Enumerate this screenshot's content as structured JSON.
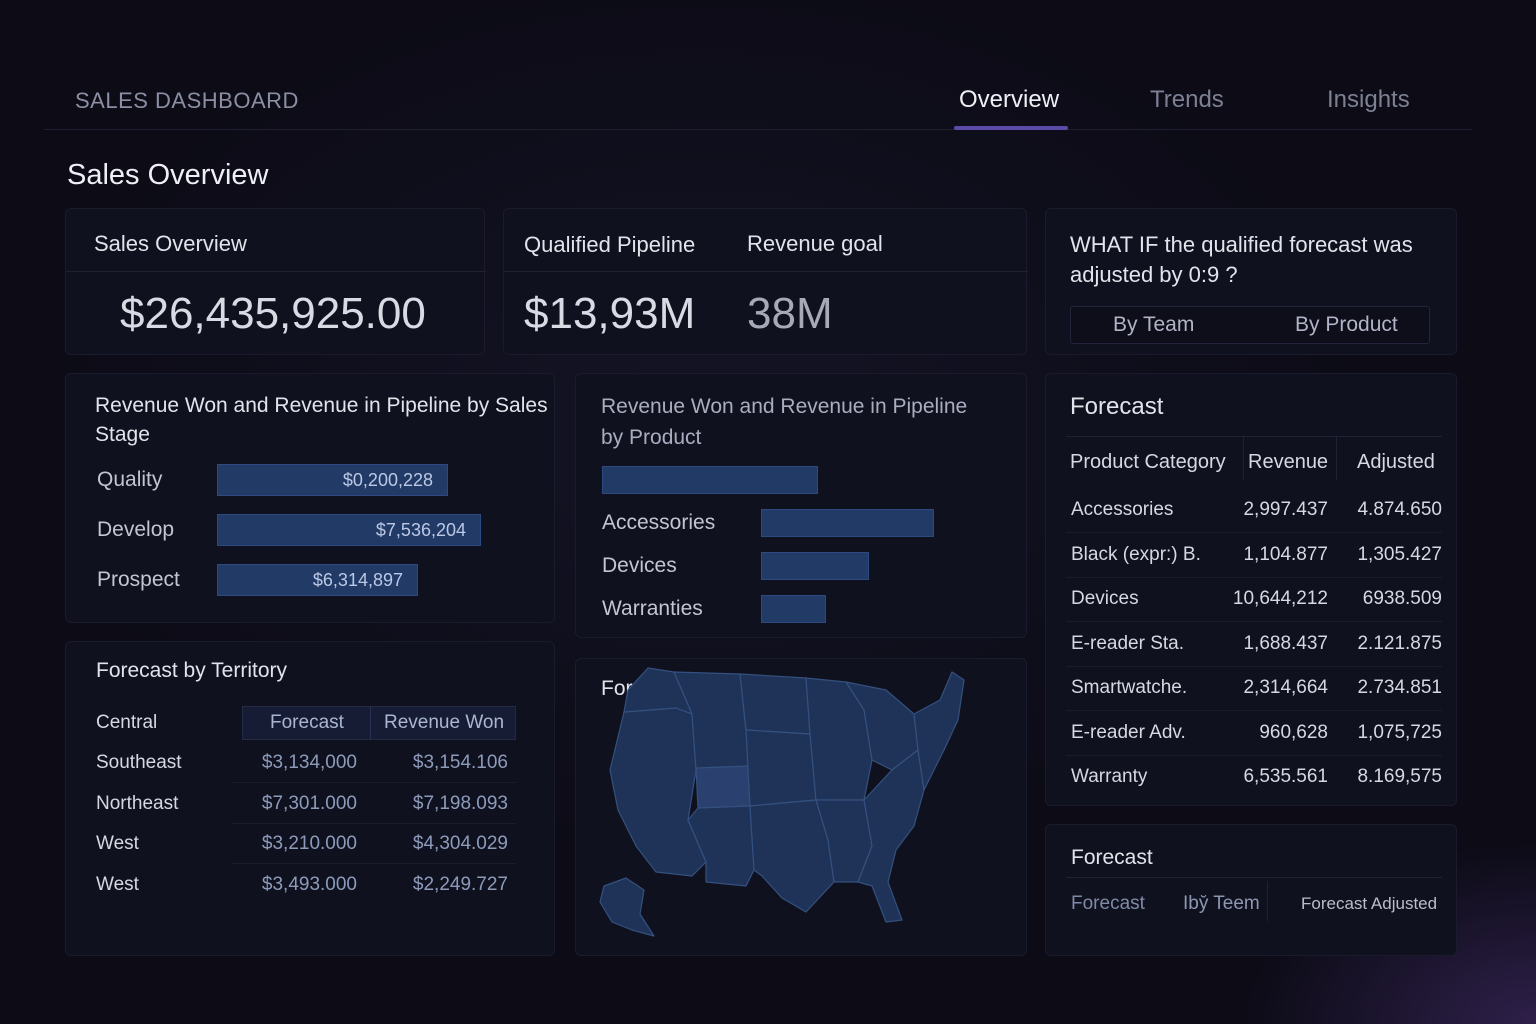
{
  "header": {
    "brand": "SALES DASHBOARD",
    "tabs": [
      {
        "label": "Overview",
        "active": true
      },
      {
        "label": "Trends",
        "active": false
      },
      {
        "label": "Insights",
        "active": false
      }
    ]
  },
  "page_title": "Sales Overview",
  "kpi_sales": {
    "title": "Sales Overview",
    "value": "$26,435,925.00"
  },
  "kpi_pipeline": {
    "pipeline_label": "Qualified Pipeline",
    "goal_label": "Revenue goal",
    "pipeline_value": "$13,93M",
    "goal_value": "38M"
  },
  "whatif": {
    "question": "WHAT IF the qualified forecast was adjusted by 0:9 ?",
    "options": [
      "By Team",
      "By Product"
    ]
  },
  "stage_chart": {
    "title": "Revenue Won and Revenue in Pipeline by Sales Stage",
    "rows": [
      {
        "label": "Quality",
        "value_text": "$0,200,228",
        "fill": 0.76
      },
      {
        "label": "Develop",
        "value_text": "$7,536,204",
        "fill": 0.87
      },
      {
        "label": "Prospect",
        "value_text": "$6,314,897",
        "fill": 0.66
      }
    ]
  },
  "product_chart": {
    "title": "Revenue Won and Revenue in Pipeline by Product",
    "rows": [
      {
        "label": "",
        "fill": 1.0
      },
      {
        "label": "Accessories",
        "fill": 0.8
      },
      {
        "label": "Devices",
        "fill": 0.5
      },
      {
        "label": "Warranties",
        "fill": 0.3
      }
    ]
  },
  "forecast_table": {
    "title": "Forecast",
    "columns": [
      "Product Category",
      "Revenue",
      "Adjusted"
    ],
    "rows": [
      [
        "Accessories",
        "2,997.437",
        "4.874.650"
      ],
      [
        "Black (expr:) B.",
        "1,104.877",
        "1,305.427"
      ],
      [
        "Devices",
        "10,644,212",
        "6938.509"
      ],
      [
        "E-reader Sta.",
        "1,688.437",
        "2.121.875"
      ],
      [
        "Smartwatche.",
        "2,314,664",
        "2.734.851"
      ],
      [
        "E-reader Adv.",
        "960,628",
        "1,075,725"
      ],
      [
        "Warranty",
        "6,535.561",
        "8.169,575"
      ]
    ]
  },
  "territory": {
    "title": "Forecast by Territory",
    "corner": "Central",
    "columns": [
      "Forecast",
      "Revenue Won"
    ],
    "rows": [
      [
        "Southeast",
        "$3,134,000",
        "$3,154.106"
      ],
      [
        "Northeast",
        "$7,301.000",
        "$7,198.093"
      ],
      [
        "West",
        "$3,210.000",
        "$4,304.029"
      ],
      [
        "West",
        "$3,493.000",
        "$2,249.727"
      ]
    ]
  },
  "location": {
    "title": "Forecast by Location"
  },
  "forecast_footer": {
    "title": "Forecast",
    "options": [
      "Forecast",
      "Iby̆ Teem",
      "Forecast Adjusted"
    ]
  },
  "colors": {
    "accent": "#5b4aa8",
    "bar": "#213a66",
    "map": "#1f3358"
  }
}
